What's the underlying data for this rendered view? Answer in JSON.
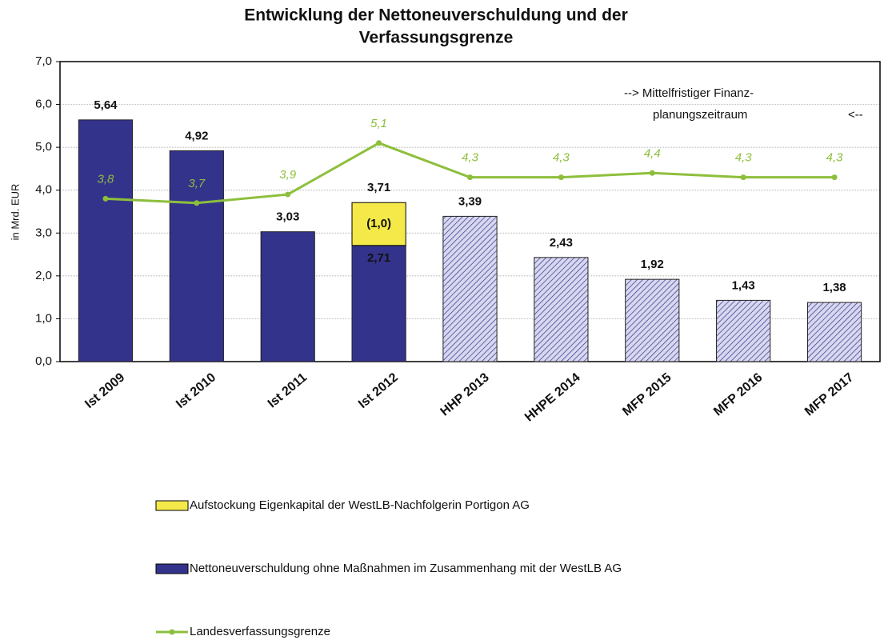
{
  "chart_data": {
    "type": "bar",
    "title": [
      "Entwicklung der Nettoneuverschuldung und der",
      "Verfassungsgrenze"
    ],
    "y_label": "in Mrd. EUR",
    "annotations": [
      "-->  Mittelfristiger Finanz-",
      "planungszeitraum",
      "<--"
    ],
    "categories": [
      "Ist 2009",
      "Ist 2010",
      "Ist 2011",
      "Ist 2012",
      "HHP 2013",
      "HHPE 2014",
      "MFP 2015",
      "MFP 2016",
      "MFP 2017"
    ],
    "hatched": [
      false,
      false,
      false,
      false,
      true,
      true,
      true,
      true,
      true
    ],
    "series": [
      {
        "name": "Nettoneuverschuldung ohne Maßnahmen im Zusammenhang mit der WestLB AG",
        "type": "bar",
        "color": "#34338c",
        "values": [
          5.64,
          4.92,
          3.03,
          2.71,
          3.39,
          2.43,
          1.92,
          1.43,
          1.38
        ],
        "value_labels": [
          "5,64",
          "4,92",
          "3,03",
          "2,71",
          "3,39",
          "2,43",
          "1,92",
          "1,43",
          "1,38"
        ]
      },
      {
        "name": "Aufstockung Eigenkapital der WestLB-Nachfolgerin Portigon AG",
        "type": "bar",
        "color": "#f5e94a",
        "values": [
          null,
          null,
          null,
          1.0,
          null,
          null,
          null,
          null,
          null
        ],
        "value_labels": [
          null,
          null,
          null,
          "(1,0)",
          null,
          null,
          null,
          null,
          null
        ]
      },
      {
        "name": "Landesverfassungsgrenze",
        "type": "line",
        "color": "#8dbf3c",
        "values": [
          3.8,
          3.7,
          3.9,
          5.1,
          4.3,
          4.3,
          4.4,
          4.3,
          4.3
        ],
        "value_labels": [
          "3,8",
          "3,7",
          "3,9",
          "5,1",
          "4,3",
          "4,3",
          "4,4",
          "4,3",
          "4,3"
        ]
      }
    ],
    "totals": [
      null,
      null,
      null,
      3.71,
      null,
      null,
      null,
      null,
      null
    ],
    "total_labels": [
      null,
      null,
      null,
      "3,71",
      null,
      null,
      null,
      null,
      null
    ],
    "ylim": [
      0,
      7
    ],
    "yticks": [
      {
        "value": 0,
        "label": "0,0"
      },
      {
        "value": 1,
        "label": "1,0"
      },
      {
        "value": 2,
        "label": "2,0"
      },
      {
        "value": 3,
        "label": "3,0"
      },
      {
        "value": 4,
        "label": "4,0"
      },
      {
        "value": 5,
        "label": "5,0"
      },
      {
        "value": 6,
        "label": "6,0"
      },
      {
        "value": 7,
        "label": "7,0"
      }
    ],
    "grid": true
  }
}
